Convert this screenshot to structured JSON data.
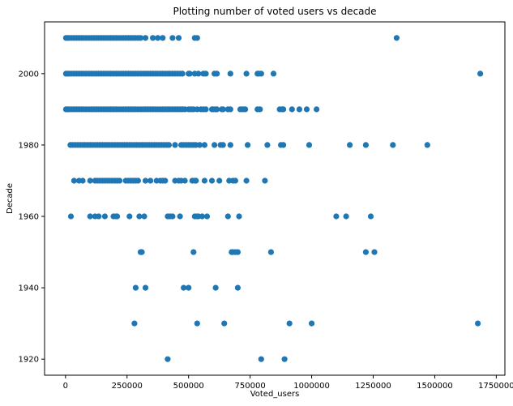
{
  "chart_data": {
    "type": "scatter",
    "title": "Plotting number of voted users vs decade",
    "xlabel": "Voted_users",
    "ylabel": "Decade",
    "xlim": [
      -85000,
      1785000
    ],
    "ylim": [
      1915.5,
      2014.5
    ],
    "xticks": [
      0,
      250000,
      500000,
      750000,
      1000000,
      1250000,
      1500000,
      1750000
    ],
    "xtick_labels": [
      "0",
      "250000",
      "500000",
      "750000",
      "1000000",
      "1250000",
      "1500000",
      "1750000"
    ],
    "yticks": [
      1920,
      1940,
      1960,
      1980,
      2000
    ],
    "ytick_labels": [
      "1920",
      "1940",
      "1960",
      "1980",
      "2000"
    ],
    "grid": false,
    "marker_color": "#1f77b4",
    "series": [
      {
        "points": [
          {
            "decade": 2010,
            "voted_users": [
              2000,
              8000,
              15000,
              25000,
              35000,
              45000,
              55000,
              65000,
              75000,
              85000,
              95000,
              105000,
              115000,
              125000,
              135000,
              145000,
              155000,
              165000,
              175000,
              185000,
              195000,
              205000,
              215000,
              225000,
              235000,
              245000,
              255000,
              265000,
              275000,
              285000,
              295000,
              305000,
              325000,
              355000,
              375000,
              395000,
              435000,
              460000,
              525000,
              535000,
              1345000
            ]
          },
          {
            "decade": 2000,
            "voted_users": [
              2000,
              8000,
              15000,
              25000,
              35000,
              45000,
              55000,
              65000,
              75000,
              85000,
              95000,
              105000,
              115000,
              125000,
              135000,
              145000,
              155000,
              165000,
              175000,
              185000,
              195000,
              205000,
              215000,
              225000,
              235000,
              245000,
              255000,
              265000,
              275000,
              285000,
              295000,
              305000,
              315000,
              325000,
              335000,
              345000,
              355000,
              365000,
              375000,
              385000,
              395000,
              405000,
              415000,
              425000,
              435000,
              445000,
              455000,
              465000,
              475000,
              500000,
              505000,
              525000,
              540000,
              560000,
              570000,
              605000,
              615000,
              670000,
              735000,
              780000,
              785000,
              795000,
              845000,
              1685000
            ]
          },
          {
            "decade": 1990,
            "voted_users": [
              2000,
              8000,
              15000,
              25000,
              35000,
              45000,
              55000,
              65000,
              75000,
              85000,
              95000,
              105000,
              115000,
              125000,
              135000,
              145000,
              155000,
              165000,
              175000,
              185000,
              195000,
              205000,
              215000,
              225000,
              235000,
              245000,
              255000,
              265000,
              275000,
              285000,
              295000,
              305000,
              315000,
              325000,
              335000,
              345000,
              355000,
              365000,
              375000,
              385000,
              395000,
              405000,
              415000,
              425000,
              435000,
              445000,
              455000,
              465000,
              475000,
              485000,
              500000,
              510000,
              520000,
              535000,
              550000,
              560000,
              570000,
              595000,
              600000,
              610000,
              615000,
              635000,
              640000,
              660000,
              670000,
              710000,
              720000,
              730000,
              780000,
              790000,
              870000,
              880000,
              885000,
              920000,
              950000,
              980000,
              1020000
            ]
          },
          {
            "decade": 1980,
            "voted_users": [
              20000,
              30000,
              40000,
              50000,
              60000,
              70000,
              80000,
              90000,
              100000,
              110000,
              120000,
              130000,
              140000,
              150000,
              160000,
              170000,
              180000,
              190000,
              200000,
              210000,
              220000,
              230000,
              240000,
              250000,
              260000,
              270000,
              280000,
              290000,
              300000,
              310000,
              320000,
              330000,
              340000,
              350000,
              360000,
              370000,
              380000,
              390000,
              400000,
              410000,
              420000,
              445000,
              470000,
              480000,
              490000,
              500000,
              510000,
              520000,
              530000,
              545000,
              565000,
              605000,
              630000,
              640000,
              670000,
              740000,
              820000,
              875000,
              885000,
              990000,
              1155000,
              1220000,
              1330000,
              1470000
            ]
          },
          {
            "decade": 1970,
            "voted_users": [
              35000,
              55000,
              70000,
              100000,
              120000,
              130000,
              140000,
              150000,
              160000,
              170000,
              180000,
              190000,
              200000,
              210000,
              220000,
              245000,
              255000,
              265000,
              275000,
              285000,
              295000,
              325000,
              345000,
              370000,
              385000,
              395000,
              405000,
              445000,
              460000,
              470000,
              485000,
              515000,
              525000,
              530000,
              565000,
              595000,
              625000,
              665000,
              680000,
              690000,
              735000,
              810000
            ]
          },
          {
            "decade": 1960,
            "voted_users": [
              22000,
              100000,
              120000,
              135000,
              160000,
              195000,
              205000,
              210000,
              260000,
              300000,
              320000,
              415000,
              425000,
              435000,
              465000,
              525000,
              535000,
              540000,
              555000,
              575000,
              660000,
              705000,
              1100000,
              1140000,
              1240000
            ]
          },
          {
            "decade": 1950,
            "voted_users": [
              305000,
              310000,
              520000,
              675000,
              680000,
              690000,
              700000,
              835000,
              1220000,
              1255000
            ]
          },
          {
            "decade": 1940,
            "voted_users": [
              285000,
              325000,
              480000,
              500000,
              610000,
              700000
            ]
          },
          {
            "decade": 1930,
            "voted_users": [
              280000,
              535000,
              645000,
              910000,
              1000000,
              1675000
            ]
          },
          {
            "decade": 1920,
            "voted_users": [
              415000,
              795000,
              890000
            ]
          }
        ]
      }
    ]
  }
}
